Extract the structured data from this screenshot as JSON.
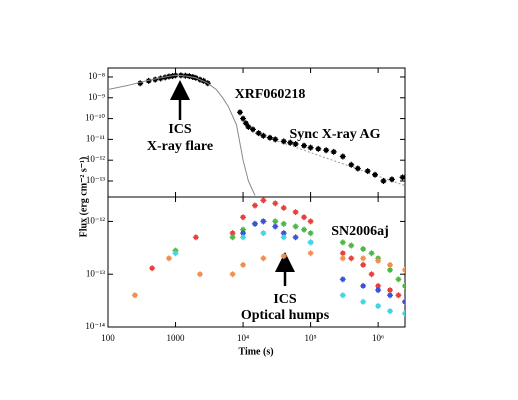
{
  "chart_data": [
    {
      "type": "scatter",
      "xscale": "log",
      "yscale": "log",
      "ylabel": "Flux (erg cm⁻² s⁻¹)",
      "ylim": [
        1.7e-14,
        2.7e-08
      ],
      "yticks": [
        {
          "value": 1e-08,
          "label": "10⁻⁸"
        },
        {
          "value": 1e-09,
          "label": "10⁻⁹"
        },
        {
          "value": 1e-10,
          "label": "10⁻¹⁰"
        },
        {
          "value": 1e-11,
          "label": "10⁻¹¹"
        },
        {
          "value": 1e-12,
          "label": "10⁻¹²"
        },
        {
          "value": 1e-13,
          "label": "10⁻¹³"
        }
      ],
      "annotations": [
        "XRF060218",
        "ICS",
        "X-ray flare",
        "Sync X-ray AG"
      ],
      "series": [
        {
          "style": "points",
          "color": "#000000",
          "x": [
            300,
            400,
            500,
            600,
            700,
            800,
            900,
            1000,
            1200,
            1400,
            1600,
            1800,
            2000,
            2300,
            2600,
            3000
          ],
          "values": [
            5e-09,
            6.5e-09,
            7.5e-09,
            8.5e-09,
            9.5e-09,
            1.05e-08,
            1.1e-08,
            1.2e-08,
            1.2e-08,
            1.15e-08,
            1.1e-08,
            1e-08,
            9e-09,
            7.5e-09,
            6.5e-09,
            5e-09
          ]
        },
        {
          "style": "line",
          "color": "#888888",
          "x": [
            100,
            200,
            400,
            700,
            1000,
            1500,
            2000,
            3000,
            4000,
            5000,
            6000,
            8000,
            10000,
            12000,
            15000
          ],
          "values": [
            2.5e-09,
            4e-09,
            7e-09,
            1e-08,
            1.2e-08,
            1.1e-08,
            9e-09,
            5e-09,
            2.5e-09,
            1e-09,
            4e-10,
            5e-11,
            1e-12,
            1e-13,
            2e-14
          ]
        },
        {
          "style": "dotted",
          "color": "#999999",
          "x": [
            15000,
            2500000
          ],
          "values": [
            2e-11,
            6e-14
          ]
        },
        {
          "style": "points",
          "color": "#000000",
          "x": [
            9000,
            10000,
            11000,
            12000,
            14000,
            17000,
            20000,
            25000,
            30000,
            40000,
            50000,
            60000,
            80000,
            100000,
            130000,
            170000,
            220000,
            300000,
            400000,
            500000,
            700000,
            900000,
            1200000,
            1600000,
            2300000
          ],
          "values": [
            2e-10,
            1e-10,
            6e-11,
            4e-11,
            3e-11,
            2e-11,
            1.5e-11,
            1.2e-11,
            1e-11,
            8e-12,
            7e-12,
            6e-12,
            5e-12,
            4e-12,
            3.5e-12,
            3e-12,
            2.5e-12,
            1.5e-12,
            6e-13,
            4e-13,
            3e-13,
            2e-13,
            1e-13,
            1.2e-13,
            1.5e-13
          ]
        }
      ]
    },
    {
      "type": "scatter",
      "xscale": "log",
      "yscale": "log",
      "xlabel": "Time (s)",
      "xlim": [
        100,
        2500000
      ],
      "xticks": [
        100,
        1000,
        {
          "value": 10000,
          "label": "10⁴"
        },
        {
          "value": 100000,
          "label": "10⁵"
        },
        {
          "value": 1000000,
          "label": "10⁶"
        }
      ],
      "ylim": [
        1e-14,
        2.9e-12
      ],
      "yticks": [
        {
          "value": 1e-12,
          "label": "10⁻¹²"
        },
        {
          "value": 1e-13,
          "label": "10⁻¹³"
        },
        {
          "value": 1e-14,
          "label": "10⁻¹⁴"
        }
      ],
      "annotations": [
        "SN2006aj",
        "ICS",
        "Optical humps"
      ],
      "series": [
        {
          "style": "points",
          "color": "#e8413c",
          "x": [
            450,
            2000,
            7000,
            10000,
            15000,
            20000,
            30000,
            40000,
            60000,
            80000,
            100000,
            300000,
            400000,
            600000,
            800000,
            1000000,
            1500000,
            2000000,
            2500000
          ],
          "values": [
            1.3e-13,
            5e-13,
            6e-13,
            1.2e-12,
            2e-12,
            2.5e-12,
            2.2e-12,
            1.8e-12,
            1.5e-12,
            1.2e-12,
            1e-12,
            2.5e-13,
            2e-13,
            1.5e-13,
            1e-13,
            6e-14,
            5e-14,
            4e-14,
            3e-14
          ]
        },
        {
          "style": "points",
          "color": "#4db848",
          "x": [
            1000,
            7000,
            10000,
            15000,
            20000,
            30000,
            40000,
            60000,
            80000,
            100000,
            300000,
            400000,
            600000,
            800000,
            1000000,
            1500000,
            2000000,
            2500000
          ],
          "values": [
            2.8e-13,
            5e-13,
            7e-13,
            9e-13,
            1e-12,
            1e-12,
            9e-13,
            8e-13,
            7e-13,
            6e-13,
            4e-13,
            3.5e-13,
            3e-13,
            2.5e-13,
            2e-13,
            1.2e-13,
            8e-14,
            6e-14
          ]
        },
        {
          "style": "points",
          "color": "#3a54d6",
          "x": [
            10000,
            15000,
            20000,
            30000,
            40000,
            60000,
            100000,
            300000,
            600000,
            1000000,
            1500000,
            2500000
          ],
          "values": [
            6e-13,
            9e-13,
            1e-12,
            8e-13,
            6e-13,
            5e-13,
            4e-13,
            8e-14,
            6e-14,
            5e-14,
            4e-14,
            3e-14
          ]
        },
        {
          "style": "points",
          "color": "#3fd6e8",
          "x": [
            1000,
            10000,
            20000,
            40000,
            100000,
            300000,
            600000,
            1000000,
            1500000,
            2500000
          ],
          "values": [
            2.5e-13,
            5e-13,
            6e-13,
            5e-13,
            4e-13,
            4e-14,
            3e-14,
            2.5e-14,
            2e-14,
            1.8e-14
          ]
        },
        {
          "style": "points",
          "color": "#f09050",
          "x": [
            250,
            800,
            2300,
            7000,
            10000,
            20000,
            40000,
            100000,
            300000,
            600000,
            1000000,
            1500000,
            2500000
          ],
          "values": [
            4e-14,
            2e-13,
            1e-13,
            1e-13,
            1.5e-13,
            2e-13,
            2.2e-13,
            2.5e-13,
            2e-13,
            2e-13,
            1.8e-13,
            1.5e-13,
            1.2e-13
          ]
        }
      ]
    }
  ]
}
